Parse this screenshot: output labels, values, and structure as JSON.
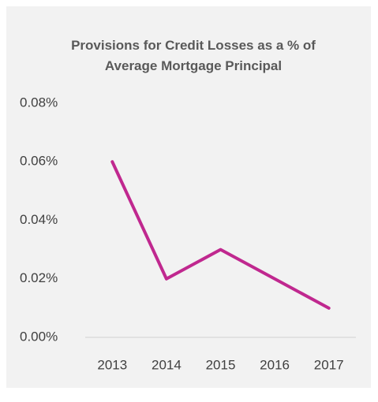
{
  "chart_data": {
    "type": "line",
    "title": "Provisions for Credit Losses as a % of Average Mortgage Principal",
    "categories": [
      "2013",
      "2014",
      "2015",
      "2016",
      "2017"
    ],
    "values": [
      0.06,
      0.02,
      0.03,
      0.02,
      0.01
    ],
    "color": "#c0288f",
    "ylim": [
      0,
      0.08
    ],
    "yticks": [
      {
        "value": 0,
        "label": "0.00%"
      },
      {
        "value": 0.02,
        "label": "0.02%"
      },
      {
        "value": 0.04,
        "label": "0.04%"
      },
      {
        "value": 0.06,
        "label": "0.06%"
      },
      {
        "value": 0.08,
        "label": "0.08%"
      }
    ],
    "grid": false
  }
}
